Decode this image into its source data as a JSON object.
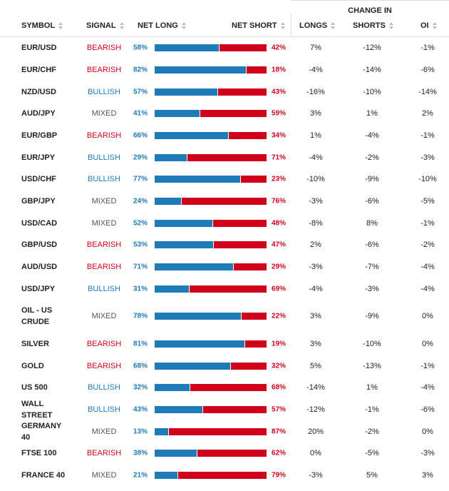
{
  "header": {
    "group_label": "CHANGE IN",
    "columns": {
      "symbol": "SYMBOL",
      "signal": "SIGNAL",
      "net_long": "NET LONG",
      "net_short": "NET SHORT",
      "longs": "LONGS",
      "shorts": "SHORTS",
      "oi": "OI"
    },
    "sort_icon": "sort-arrows-icon"
  },
  "colors": {
    "long": "#1f7ab8",
    "short": "#d0021b",
    "bearish": "#d0021b",
    "bullish": "#1f7ab8",
    "mixed": "#555555"
  },
  "rows": [
    {
      "symbol": "EUR/USD",
      "signal": "BEARISH",
      "net_long": 58,
      "net_long_label": "58%",
      "net_short_label": "42%",
      "longs": "7%",
      "shorts": "-12%",
      "oi": "-1%"
    },
    {
      "symbol": "EUR/CHF",
      "signal": "BEARISH",
      "net_long": 82,
      "net_long_label": "82%",
      "net_short_label": "18%",
      "longs": "-4%",
      "shorts": "-14%",
      "oi": "-6%"
    },
    {
      "symbol": "NZD/USD",
      "signal": "BULLISH",
      "net_long": 57,
      "net_long_label": "57%",
      "net_short_label": "43%",
      "longs": "-16%",
      "shorts": "-10%",
      "oi": "-14%"
    },
    {
      "symbol": "AUD/JPY",
      "signal": "MIXED",
      "net_long": 41,
      "net_long_label": "41%",
      "net_short_label": "59%",
      "longs": "3%",
      "shorts": "1%",
      "oi": "2%"
    },
    {
      "symbol": "EUR/GBP",
      "signal": "BEARISH",
      "net_long": 66,
      "net_long_label": "66%",
      "net_short_label": "34%",
      "longs": "1%",
      "shorts": "-4%",
      "oi": "-1%"
    },
    {
      "symbol": "EUR/JPY",
      "signal": "BULLISH",
      "net_long": 29,
      "net_long_label": "29%",
      "net_short_label": "71%",
      "longs": "-4%",
      "shorts": "-2%",
      "oi": "-3%"
    },
    {
      "symbol": "USD/CHF",
      "signal": "BULLISH",
      "net_long": 77,
      "net_long_label": "77%",
      "net_short_label": "23%",
      "longs": "-10%",
      "shorts": "-9%",
      "oi": "-10%"
    },
    {
      "symbol": "GBP/JPY",
      "signal": "MIXED",
      "net_long": 24,
      "net_long_label": "24%",
      "net_short_label": "76%",
      "longs": "-3%",
      "shorts": "-6%",
      "oi": "-5%"
    },
    {
      "symbol": "USD/CAD",
      "signal": "MIXED",
      "net_long": 52,
      "net_long_label": "52%",
      "net_short_label": "48%",
      "longs": "-8%",
      "shorts": "8%",
      "oi": "-1%"
    },
    {
      "symbol": "GBP/USD",
      "signal": "BEARISH",
      "net_long": 53,
      "net_long_label": "53%",
      "net_short_label": "47%",
      "longs": "2%",
      "shorts": "-6%",
      "oi": "-2%"
    },
    {
      "symbol": "AUD/USD",
      "signal": "BEARISH",
      "net_long": 71,
      "net_long_label": "71%",
      "net_short_label": "29%",
      "longs": "-3%",
      "shorts": "-7%",
      "oi": "-4%"
    },
    {
      "symbol": "USD/JPY",
      "signal": "BULLISH",
      "net_long": 31,
      "net_long_label": "31%",
      "net_short_label": "69%",
      "longs": "-4%",
      "shorts": "-3%",
      "oi": "-4%"
    },
    {
      "symbol": "OIL - US CRUDE",
      "signal": "MIXED",
      "net_long": 78,
      "net_long_label": "78%",
      "net_short_label": "22%",
      "longs": "3%",
      "shorts": "-9%",
      "oi": "0%"
    },
    {
      "symbol": "SILVER",
      "signal": "BEARISH",
      "net_long": 81,
      "net_long_label": "81%",
      "net_short_label": "19%",
      "longs": "3%",
      "shorts": "-10%",
      "oi": "0%"
    },
    {
      "symbol": "GOLD",
      "signal": "BEARISH",
      "net_long": 68,
      "net_long_label": "68%",
      "net_short_label": "32%",
      "longs": "5%",
      "shorts": "-13%",
      "oi": "-1%"
    },
    {
      "symbol": "US 500",
      "signal": "BULLISH",
      "net_long": 32,
      "net_long_label": "32%",
      "net_short_label": "68%",
      "longs": "-14%",
      "shorts": "1%",
      "oi": "-4%"
    },
    {
      "symbol": "WALL STREET",
      "signal": "BULLISH",
      "net_long": 43,
      "net_long_label": "43%",
      "net_short_label": "57%",
      "longs": "-12%",
      "shorts": "-1%",
      "oi": "-6%"
    },
    {
      "symbol": "GERMANY 40",
      "signal": "MIXED",
      "net_long": 13,
      "net_long_label": "13%",
      "net_short_label": "87%",
      "longs": "20%",
      "shorts": "-2%",
      "oi": "0%"
    },
    {
      "symbol": "FTSE 100",
      "signal": "BEARISH",
      "net_long": 38,
      "net_long_label": "38%",
      "net_short_label": "62%",
      "longs": "0%",
      "shorts": "-5%",
      "oi": "-3%"
    },
    {
      "symbol": "FRANCE 40",
      "signal": "MIXED",
      "net_long": 21,
      "net_long_label": "21%",
      "net_short_label": "79%",
      "longs": "-3%",
      "shorts": "5%",
      "oi": "3%"
    }
  ]
}
